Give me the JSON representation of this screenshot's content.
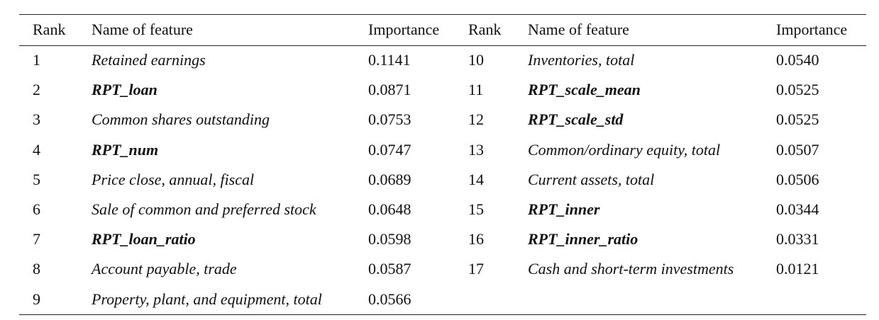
{
  "table": {
    "headers": {
      "rank": "Rank",
      "name": "Name of feature",
      "importance": "Importance"
    },
    "left_rows": [
      {
        "rank": "1",
        "name": "Retained earnings",
        "importance": "0.1141",
        "rpt": false
      },
      {
        "rank": "2",
        "name": "RPT_loan",
        "importance": "0.0871",
        "rpt": true
      },
      {
        "rank": "3",
        "name": "Common shares outstanding",
        "importance": "0.0753",
        "rpt": false
      },
      {
        "rank": "4",
        "name": "RPT_num",
        "importance": "0.0747",
        "rpt": true
      },
      {
        "rank": "5",
        "name": "Price close, annual, fiscal",
        "importance": "0.0689",
        "rpt": false
      },
      {
        "rank": "6",
        "name": "Sale of common and preferred stock",
        "importance": "0.0648",
        "rpt": false
      },
      {
        "rank": "7",
        "name": "RPT_loan_ratio",
        "importance": "0.0598",
        "rpt": true
      },
      {
        "rank": "8",
        "name": "Account payable, trade",
        "importance": "0.0587",
        "rpt": false
      },
      {
        "rank": "9",
        "name": "Property, plant, and equipment, total",
        "importance": "0.0566",
        "rpt": false
      }
    ],
    "right_rows": [
      {
        "rank": "10",
        "name": "Inventories, total",
        "importance": "0.0540",
        "rpt": false
      },
      {
        "rank": "11",
        "name": "RPT_scale_mean",
        "importance": "0.0525",
        "rpt": true
      },
      {
        "rank": "12",
        "name": "RPT_scale_std",
        "importance": "0.0525",
        "rpt": true
      },
      {
        "rank": "13",
        "name": "Common/ordinary equity, total",
        "importance": "0.0507",
        "rpt": false
      },
      {
        "rank": "14",
        "name": "Current assets, total",
        "importance": "0.0506",
        "rpt": false
      },
      {
        "rank": "15",
        "name": "RPT_inner",
        "importance": "0.0344",
        "rpt": true
      },
      {
        "rank": "16",
        "name": "RPT_inner_ratio",
        "importance": "0.0331",
        "rpt": true
      },
      {
        "rank": "17",
        "name": "Cash and short-term investments",
        "importance": "0.0121",
        "rpt": false
      }
    ]
  }
}
